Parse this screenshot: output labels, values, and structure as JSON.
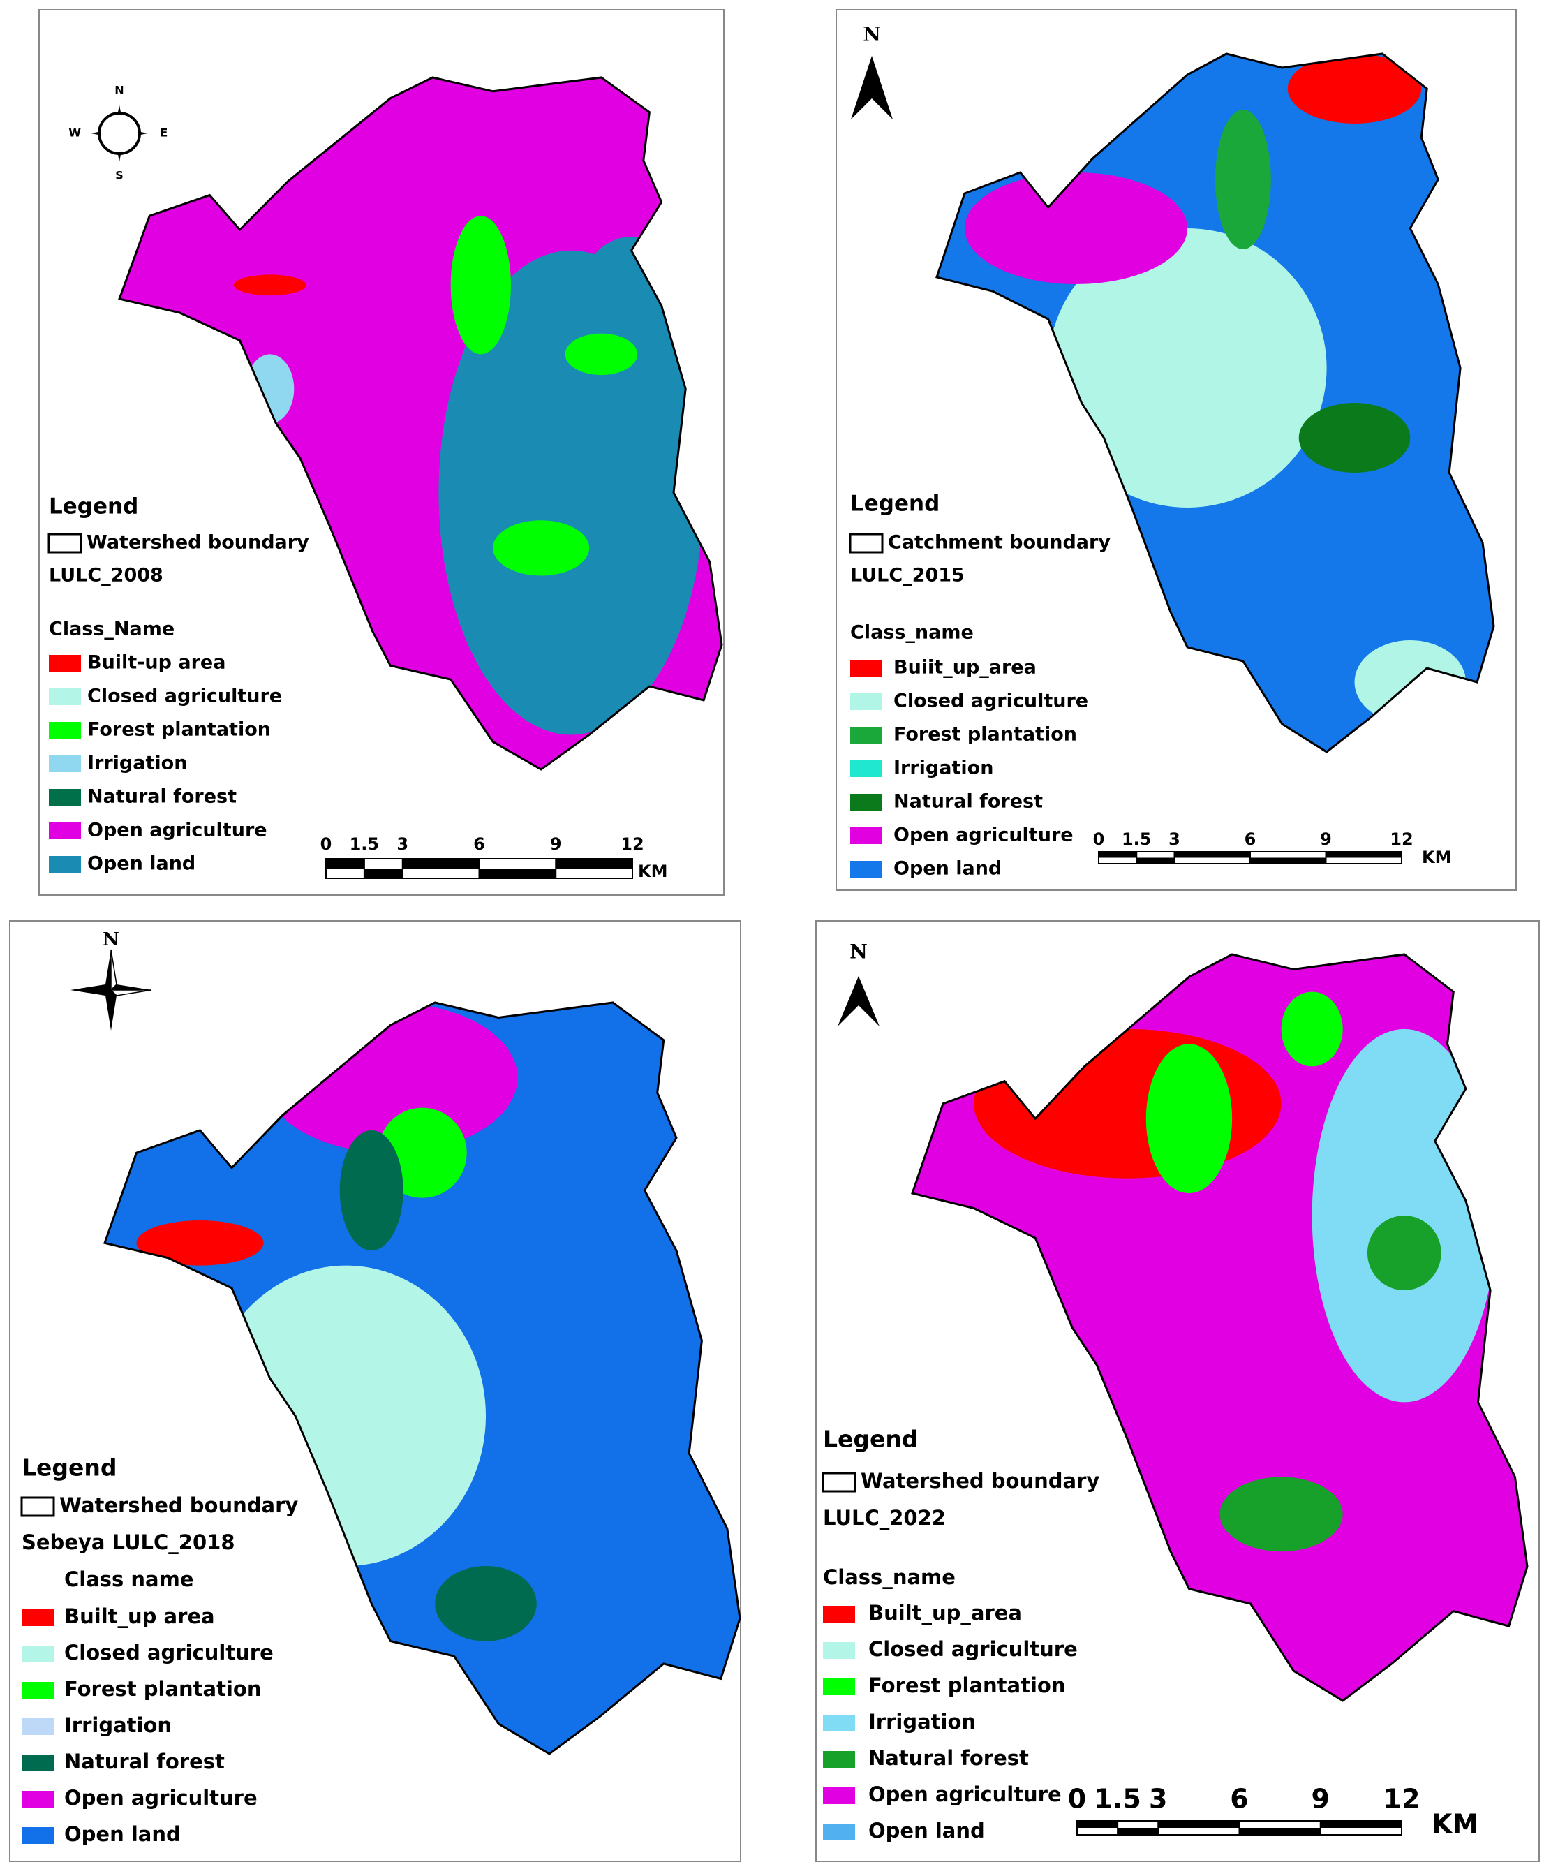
{
  "panels": [
    {
      "compass": [
        "N",
        "E",
        "S",
        "W"
      ],
      "legend": {
        "title": "Legend",
        "boundary": "Watershed boundary",
        "layer": "LULC_2008",
        "class_header": "Class_Name",
        "classes": [
          {
            "label": "Built-up area",
            "color": "#ff0000"
          },
          {
            "label": "Closed agriculture",
            "color": "#b3f5e6"
          },
          {
            "label": "Forest plantation",
            "color": "#00ff00"
          },
          {
            "label": "Irrigation",
            "color": "#8fd8f0"
          },
          {
            "label": "Natural forest",
            "color": "#00704a"
          },
          {
            "label": "Open agriculture",
            "color": "#e100e1"
          },
          {
            "label": "Open land",
            "color": "#1a8cb4"
          }
        ]
      },
      "scale_bar": {
        "ticks": [
          0,
          1.5,
          3,
          6,
          9,
          12
        ],
        "unit": "KM"
      }
    },
    {
      "compass": [
        "N"
      ],
      "legend": {
        "title": "Legend",
        "boundary": "Catchment boundary",
        "layer": "LULC_2015",
        "class_header": "Class_name",
        "classes": [
          {
            "label": "Buiit_up_area",
            "color": "#ff0000"
          },
          {
            "label": "Closed agriculture",
            "color": "#b0f5e6"
          },
          {
            "label": "Forest plantation",
            "color": "#1aa83a"
          },
          {
            "label": "Irrigation",
            "color": "#20e8d0"
          },
          {
            "label": "Natural forest",
            "color": "#0a7a1a"
          },
          {
            "label": "Open agriculture",
            "color": "#e000e0"
          },
          {
            "label": "Open land",
            "color": "#1478ea"
          }
        ]
      },
      "scale_bar": {
        "ticks": [
          0,
          1.5,
          3,
          6,
          9,
          12
        ],
        "unit": "KM"
      }
    },
    {
      "compass": [
        "N"
      ],
      "legend": {
        "title": "Legend",
        "boundary": "Watershed boundary",
        "layer": "Sebeya LULC_2018",
        "class_header": "Class name",
        "classes": [
          {
            "label": "Built_up area",
            "color": "#ff0000"
          },
          {
            "label": "Closed agriculture",
            "color": "#b3f5e6"
          },
          {
            "label": "Forest plantation",
            "color": "#00ff00"
          },
          {
            "label": "Irrigation",
            "color": "#bed8f8"
          },
          {
            "label": "Natural forest",
            "color": "#006b4e"
          },
          {
            "label": "Open agriculture",
            "color": "#e100e1"
          },
          {
            "label": "Open land",
            "color": "#1270e8"
          }
        ]
      }
    },
    {
      "compass": [
        "N"
      ],
      "legend": {
        "title": "Legend",
        "boundary": "Watershed boundary",
        "layer": "LULC_2022",
        "class_header": "Class_name",
        "classes": [
          {
            "label": "Built_up_area",
            "color": "#ff0000"
          },
          {
            "label": "Closed agriculture",
            "color": "#b3f5e6"
          },
          {
            "label": "Forest plantation",
            "color": "#00ff00"
          },
          {
            "label": "Irrigation",
            "color": "#80dcf5"
          },
          {
            "label": "Natural forest",
            "color": "#17a02a"
          },
          {
            "label": "Open agriculture",
            "color": "#e100e1"
          },
          {
            "label": "Open land",
            "color": "#50b0f0"
          }
        ]
      },
      "scale_bar": {
        "ticks": [
          0,
          1.5,
          3,
          6,
          9,
          12
        ],
        "unit": "KM"
      }
    }
  ]
}
